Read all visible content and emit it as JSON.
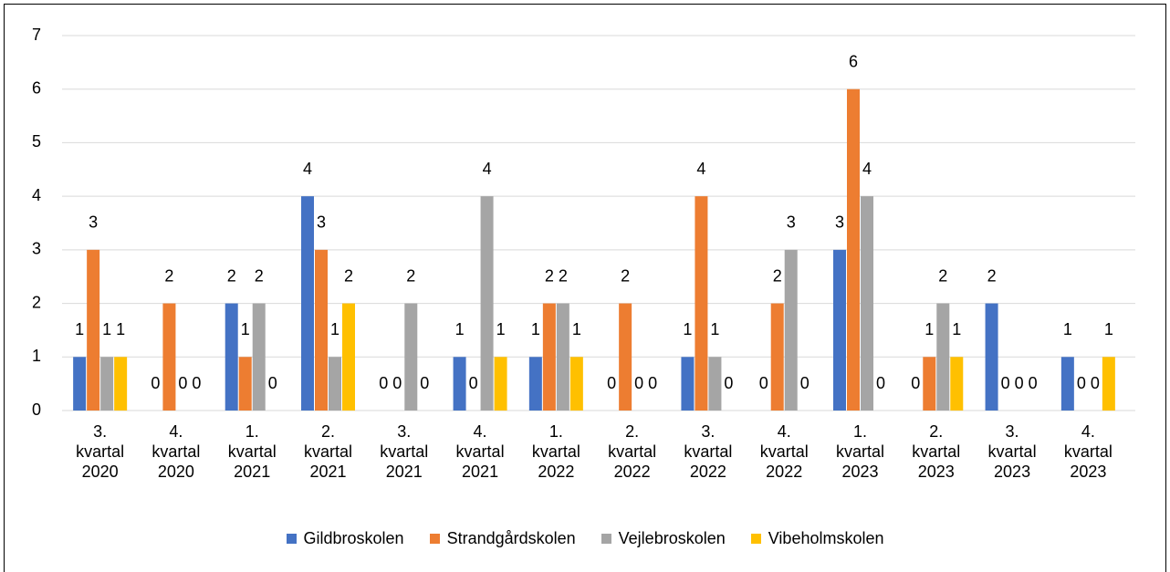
{
  "chart_data": {
    "type": "bar",
    "categories": [
      "3. kvartal 2020",
      "4. kvartal 2020",
      "1. kvartal 2021",
      "2. kvartal 2021",
      "3. kvartal 2021",
      "4. kvartal 2021",
      "1. kvartal 2022",
      "2. kvartal 2022",
      "3. kvartal 2022",
      "4. kvartal 2022",
      "1. kvartal 2023",
      "2. kvartal 2023",
      "3. kvartal 2023",
      "4. kvartal 2023"
    ],
    "series": [
      {
        "name": "Gildbroskolen",
        "color": "#4472c4",
        "values": [
          1,
          0,
          2,
          4,
          0,
          1,
          1,
          0,
          1,
          0,
          3,
          0,
          2,
          1
        ]
      },
      {
        "name": "Strandgårdskolen",
        "color": "#ed7d31",
        "values": [
          3,
          2,
          1,
          3,
          0,
          0,
          2,
          2,
          4,
          2,
          6,
          1,
          0,
          0
        ]
      },
      {
        "name": "Vejlebroskolen",
        "color": "#a5a5a5",
        "values": [
          1,
          0,
          2,
          1,
          2,
          4,
          2,
          0,
          1,
          3,
          4,
          2,
          0,
          0
        ]
      },
      {
        "name": "Vibeholmskolen",
        "color": "#ffc000",
        "values": [
          1,
          0,
          0,
          2,
          0,
          1,
          1,
          0,
          0,
          0,
          0,
          1,
          0,
          1
        ]
      }
    ],
    "ylim": [
      0,
      7
    ],
    "yticks": [
      0,
      1,
      2,
      3,
      4,
      5,
      6,
      7
    ],
    "grid": true,
    "legend": "bottom"
  }
}
